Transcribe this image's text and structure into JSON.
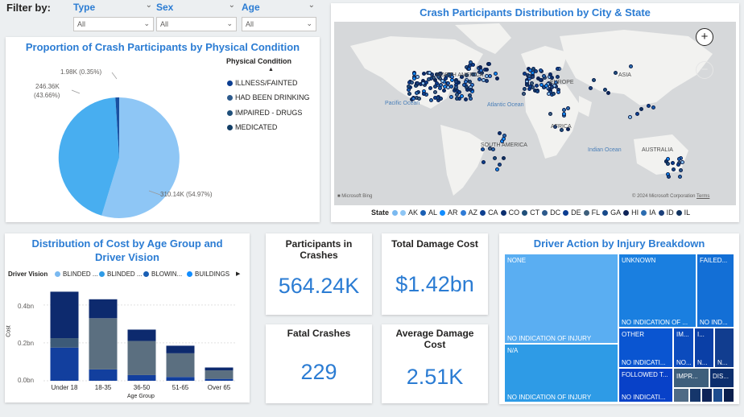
{
  "filters": {
    "label": "Filter by:",
    "slicers": [
      {
        "name": "Type",
        "value": "All"
      },
      {
        "name": "Sex",
        "value": "All"
      },
      {
        "name": "Age",
        "value": "All"
      }
    ]
  },
  "pie": {
    "title": "Proportion of Crash Participants by Physical Condition",
    "legend_title": "Physical Condition",
    "legend": [
      {
        "label": "ILLNESS/FAINTED",
        "color": "#0b3d91"
      },
      {
        "label": "HAD BEEN DRINKING",
        "color": "#2d5a8c"
      },
      {
        "label": "IMPAIRED - DRUGS",
        "color": "#1f4f7a"
      },
      {
        "label": "MEDICATED",
        "color": "#123e66"
      }
    ],
    "labels": {
      "small": "1.98K (0.35%)",
      "mid_a": "246.36K",
      "mid_b": "(43.66%)",
      "large": "310.14K (54.97%)"
    }
  },
  "map": {
    "title": "Crash Participants Distribution by City & State",
    "regions": {
      "na": "NORTH AMERICA",
      "eu": "EUROPE",
      "asia": "ASIA",
      "pacific": "Pacific Ocean",
      "atlantic": "Atlantic Ocean",
      "africa": "AFRICA",
      "sa": "SOUTH AMERICA",
      "indian": "Indian Ocean",
      "au": "AUSTRALIA"
    },
    "attribution_left": "Microsoft Bing",
    "attribution_right": "© 2024 Microsoft Corporation",
    "terms": "Terms",
    "legend_title": "State",
    "states": [
      "AK",
      "AL",
      "AR",
      "AZ",
      "CA",
      "CO",
      "CT",
      "DC",
      "DE",
      "FL",
      "GA",
      "HI",
      "IA",
      "ID",
      "IL"
    ],
    "zoom_in": "+",
    "zoom_out": "−"
  },
  "bar": {
    "title_line1": "Distribution of Cost by Age Group and",
    "title_line2": "Driver Vision",
    "legend_title": "Driver Vision",
    "legend": [
      {
        "label": "BLINDED ...",
        "color": "#7ab9f0"
      },
      {
        "label": "BLINDED ...",
        "color": "#2e9be6"
      },
      {
        "label": "BLOWIN...",
        "color": "#1a5fb4"
      },
      {
        "label": "BUILDINGS",
        "color": "#118dff"
      }
    ],
    "more": "▶",
    "ylabel": "Cost",
    "xlabel": "Age Group",
    "yticks": [
      "0.4bn",
      "0.2bn",
      "0.0bn"
    ]
  },
  "chart_data": {
    "type": "bar",
    "title": "Distribution of Cost by Age Group and Driver Vision",
    "xlabel": "Age Group",
    "ylabel": "Cost",
    "categories": [
      "Under 18",
      "18-35",
      "36-50",
      "51-65",
      "Over 65"
    ],
    "ylim": [
      0,
      0.48
    ],
    "stacks": [
      [
        {
          "v": 0.175,
          "c": "#123f9e"
        },
        {
          "v": 0.05,
          "c": "#3c5a78"
        },
        {
          "v": 0.245,
          "c": "#0d2a6e"
        }
      ],
      [
        {
          "v": 0.06,
          "c": "#123f9e"
        },
        {
          "v": 0.27,
          "c": "#5b6f80"
        },
        {
          "v": 0.1,
          "c": "#0d2a6e"
        }
      ],
      [
        {
          "v": 0.03,
          "c": "#123f9e"
        },
        {
          "v": 0.18,
          "c": "#5b6f80"
        },
        {
          "v": 0.06,
          "c": "#0d2a6e"
        }
      ],
      [
        {
          "v": 0.02,
          "c": "#123f9e"
        },
        {
          "v": 0.125,
          "c": "#5b6f80"
        },
        {
          "v": 0.04,
          "c": "#0d2a6e"
        }
      ],
      [
        {
          "v": 0.01,
          "c": "#123f9e"
        },
        {
          "v": 0.045,
          "c": "#5b6f80"
        },
        {
          "v": 0.015,
          "c": "#0d2a6e"
        }
      ]
    ]
  },
  "kpis": {
    "participants_title": "Participants in Crashes",
    "participants_value": "564.24K",
    "damage_title": "Total Damage Cost",
    "damage_value": "$1.42bn",
    "fatal_title": "Fatal Crashes",
    "fatal_value": "229",
    "avg_title": "Average Damage Cost",
    "avg_value": "2.51K"
  },
  "treemap": {
    "title": "Driver Action by Injury Breakdown",
    "cells": {
      "none": "NONE",
      "none_sub": "NO INDICATION OF INJURY",
      "na": "N/A",
      "na_sub": "NO INDICATION OF INJURY",
      "unknown": "UNKNOWN",
      "unknown_sub": "NO INDICATION OF ...",
      "failed": "FAILED...",
      "failed_sub": "NO IND...",
      "other": "OTHER",
      "other_sub": "NO INDICATI...",
      "im": "IM...",
      "i": "I...",
      "no1": "NO...",
      "n1": "N...",
      "followed": "FOLLOWED T...",
      "followed_sub": "NO INDICATI...",
      "impr": "IMPR...",
      "dis": "DIS...",
      "n2": "N..."
    }
  }
}
